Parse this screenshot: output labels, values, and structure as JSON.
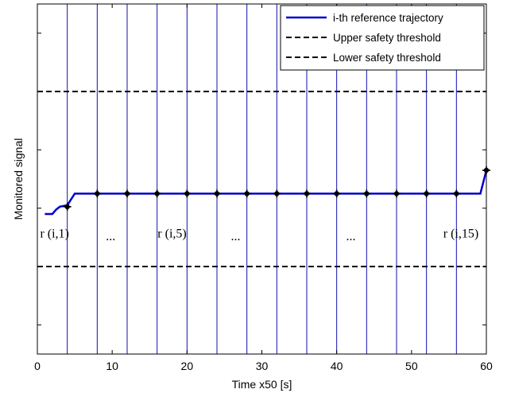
{
  "chart_data": {
    "type": "line",
    "xlabel": "Time x50 [s]",
    "ylabel": "Monitored signal",
    "xlim": [
      0,
      60
    ],
    "ylim": [
      0,
      12
    ],
    "x_ticks": [
      "0",
      "10",
      "20",
      "30",
      "40",
      "50",
      "60"
    ],
    "x_tick_values": [
      0,
      10,
      20,
      30,
      40,
      50,
      60
    ],
    "y_ticks_unlabeled": [
      1,
      3,
      5,
      7,
      9,
      11
    ],
    "grid": false,
    "legend_position": "top-right",
    "legend": [
      {
        "label": "i-th reference trajectory",
        "color": "#0000cc",
        "style": "solid"
      },
      {
        "label": "Upper safety threshold",
        "color": "#000000",
        "style": "dashed"
      },
      {
        "label": "Lower safety threshold",
        "color": "#000000",
        "style": "dashed"
      }
    ],
    "series": [
      {
        "name": "i-th reference trajectory",
        "color": "#0000cc",
        "style": "solid",
        "x": [
          1,
          2,
          2.5,
          3,
          4,
          5,
          8,
          12,
          16,
          20,
          24,
          28,
          32,
          36,
          40,
          44,
          48,
          52,
          56,
          59.2,
          60
        ],
        "y": [
          4.8,
          4.8,
          4.95,
          5.05,
          5.1,
          5.5,
          5.5,
          5.5,
          5.5,
          5.5,
          5.5,
          5.5,
          5.5,
          5.5,
          5.5,
          5.5,
          5.5,
          5.5,
          5.5,
          5.5,
          6.3
        ]
      },
      {
        "name": "Upper safety threshold",
        "color": "#000000",
        "style": "dashed",
        "x": [
          0,
          60
        ],
        "y": [
          9,
          9
        ]
      },
      {
        "name": "Lower safety threshold",
        "color": "#000000",
        "style": "dashed",
        "x": [
          0,
          60
        ],
        "y": [
          3,
          3
        ]
      }
    ],
    "markers": {
      "color": "#000000",
      "x": [
        4,
        8,
        12,
        16,
        20,
        24,
        28,
        32,
        36,
        40,
        44,
        48,
        52,
        56,
        60
      ],
      "y": [
        5.05,
        5.5,
        5.5,
        5.5,
        5.5,
        5.5,
        5.5,
        5.5,
        5.5,
        5.5,
        5.5,
        5.5,
        5.5,
        5.5,
        6.3
      ]
    },
    "vertical_lines": {
      "color": "#1010b0",
      "x": [
        4,
        8,
        12,
        16,
        20,
        24,
        28,
        32,
        36,
        40,
        44,
        48,
        52,
        56,
        60
      ]
    },
    "annotations": [
      {
        "text": "r (i,1)",
        "x": 2.3,
        "y": 4.0
      },
      {
        "text": "...",
        "x": 9.8,
        "y": 3.9
      },
      {
        "text": "r (i,5)",
        "x": 18.0,
        "y": 4.0
      },
      {
        "text": "...",
        "x": 26.5,
        "y": 3.9
      },
      {
        "text": "...",
        "x": 41.9,
        "y": 3.9
      },
      {
        "text": "r (i,15)",
        "x": 56.6,
        "y": 4.0
      }
    ]
  }
}
